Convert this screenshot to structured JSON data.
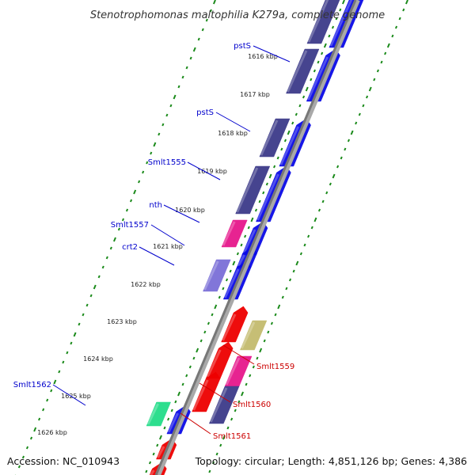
{
  "title": "Stenotrophomonas maltophilia K279a, complete genome",
  "accession": "Accession: NC_010943",
  "topology": "Topology: circular; Length: 4,851,126 bp; Genes: 4,386",
  "colors": {
    "forward_cds": "#0a0ae6",
    "reverse_cds": "#3d3a8a",
    "pink": "#e6188c",
    "light_purple": "#7b6fd8",
    "red": "#ee0000",
    "khaki": "#c4bb6e",
    "green": "#22dd88",
    "label_blue": "#0000cc",
    "label_red": "#cc0000",
    "tick_green": "#1a8a1a",
    "backbone": "#777777"
  },
  "kbp_ticks": [
    "1616 kbp",
    "1617 kbp",
    "1618 kbp",
    "1619 kbp",
    "1620 kbp",
    "1621 kbp",
    "1622 kbp",
    "1623 kbp",
    "1624 kbp",
    "1625 kbp",
    "1626 kbp"
  ],
  "gene_labels": [
    {
      "name": "pstS",
      "color": "blue"
    },
    {
      "name": "pstS",
      "color": "blue"
    },
    {
      "name": "Smlt1555",
      "color": "blue"
    },
    {
      "name": "nth",
      "color": "blue"
    },
    {
      "name": "Smlt1557",
      "color": "blue"
    },
    {
      "name": "crt2",
      "color": "blue"
    },
    {
      "name": "Smlt1562",
      "color": "blue"
    },
    {
      "name": "Smlt1559",
      "color": "red"
    },
    {
      "name": "Smlt1560",
      "color": "red"
    },
    {
      "name": "Smlt1561",
      "color": "red"
    }
  ]
}
